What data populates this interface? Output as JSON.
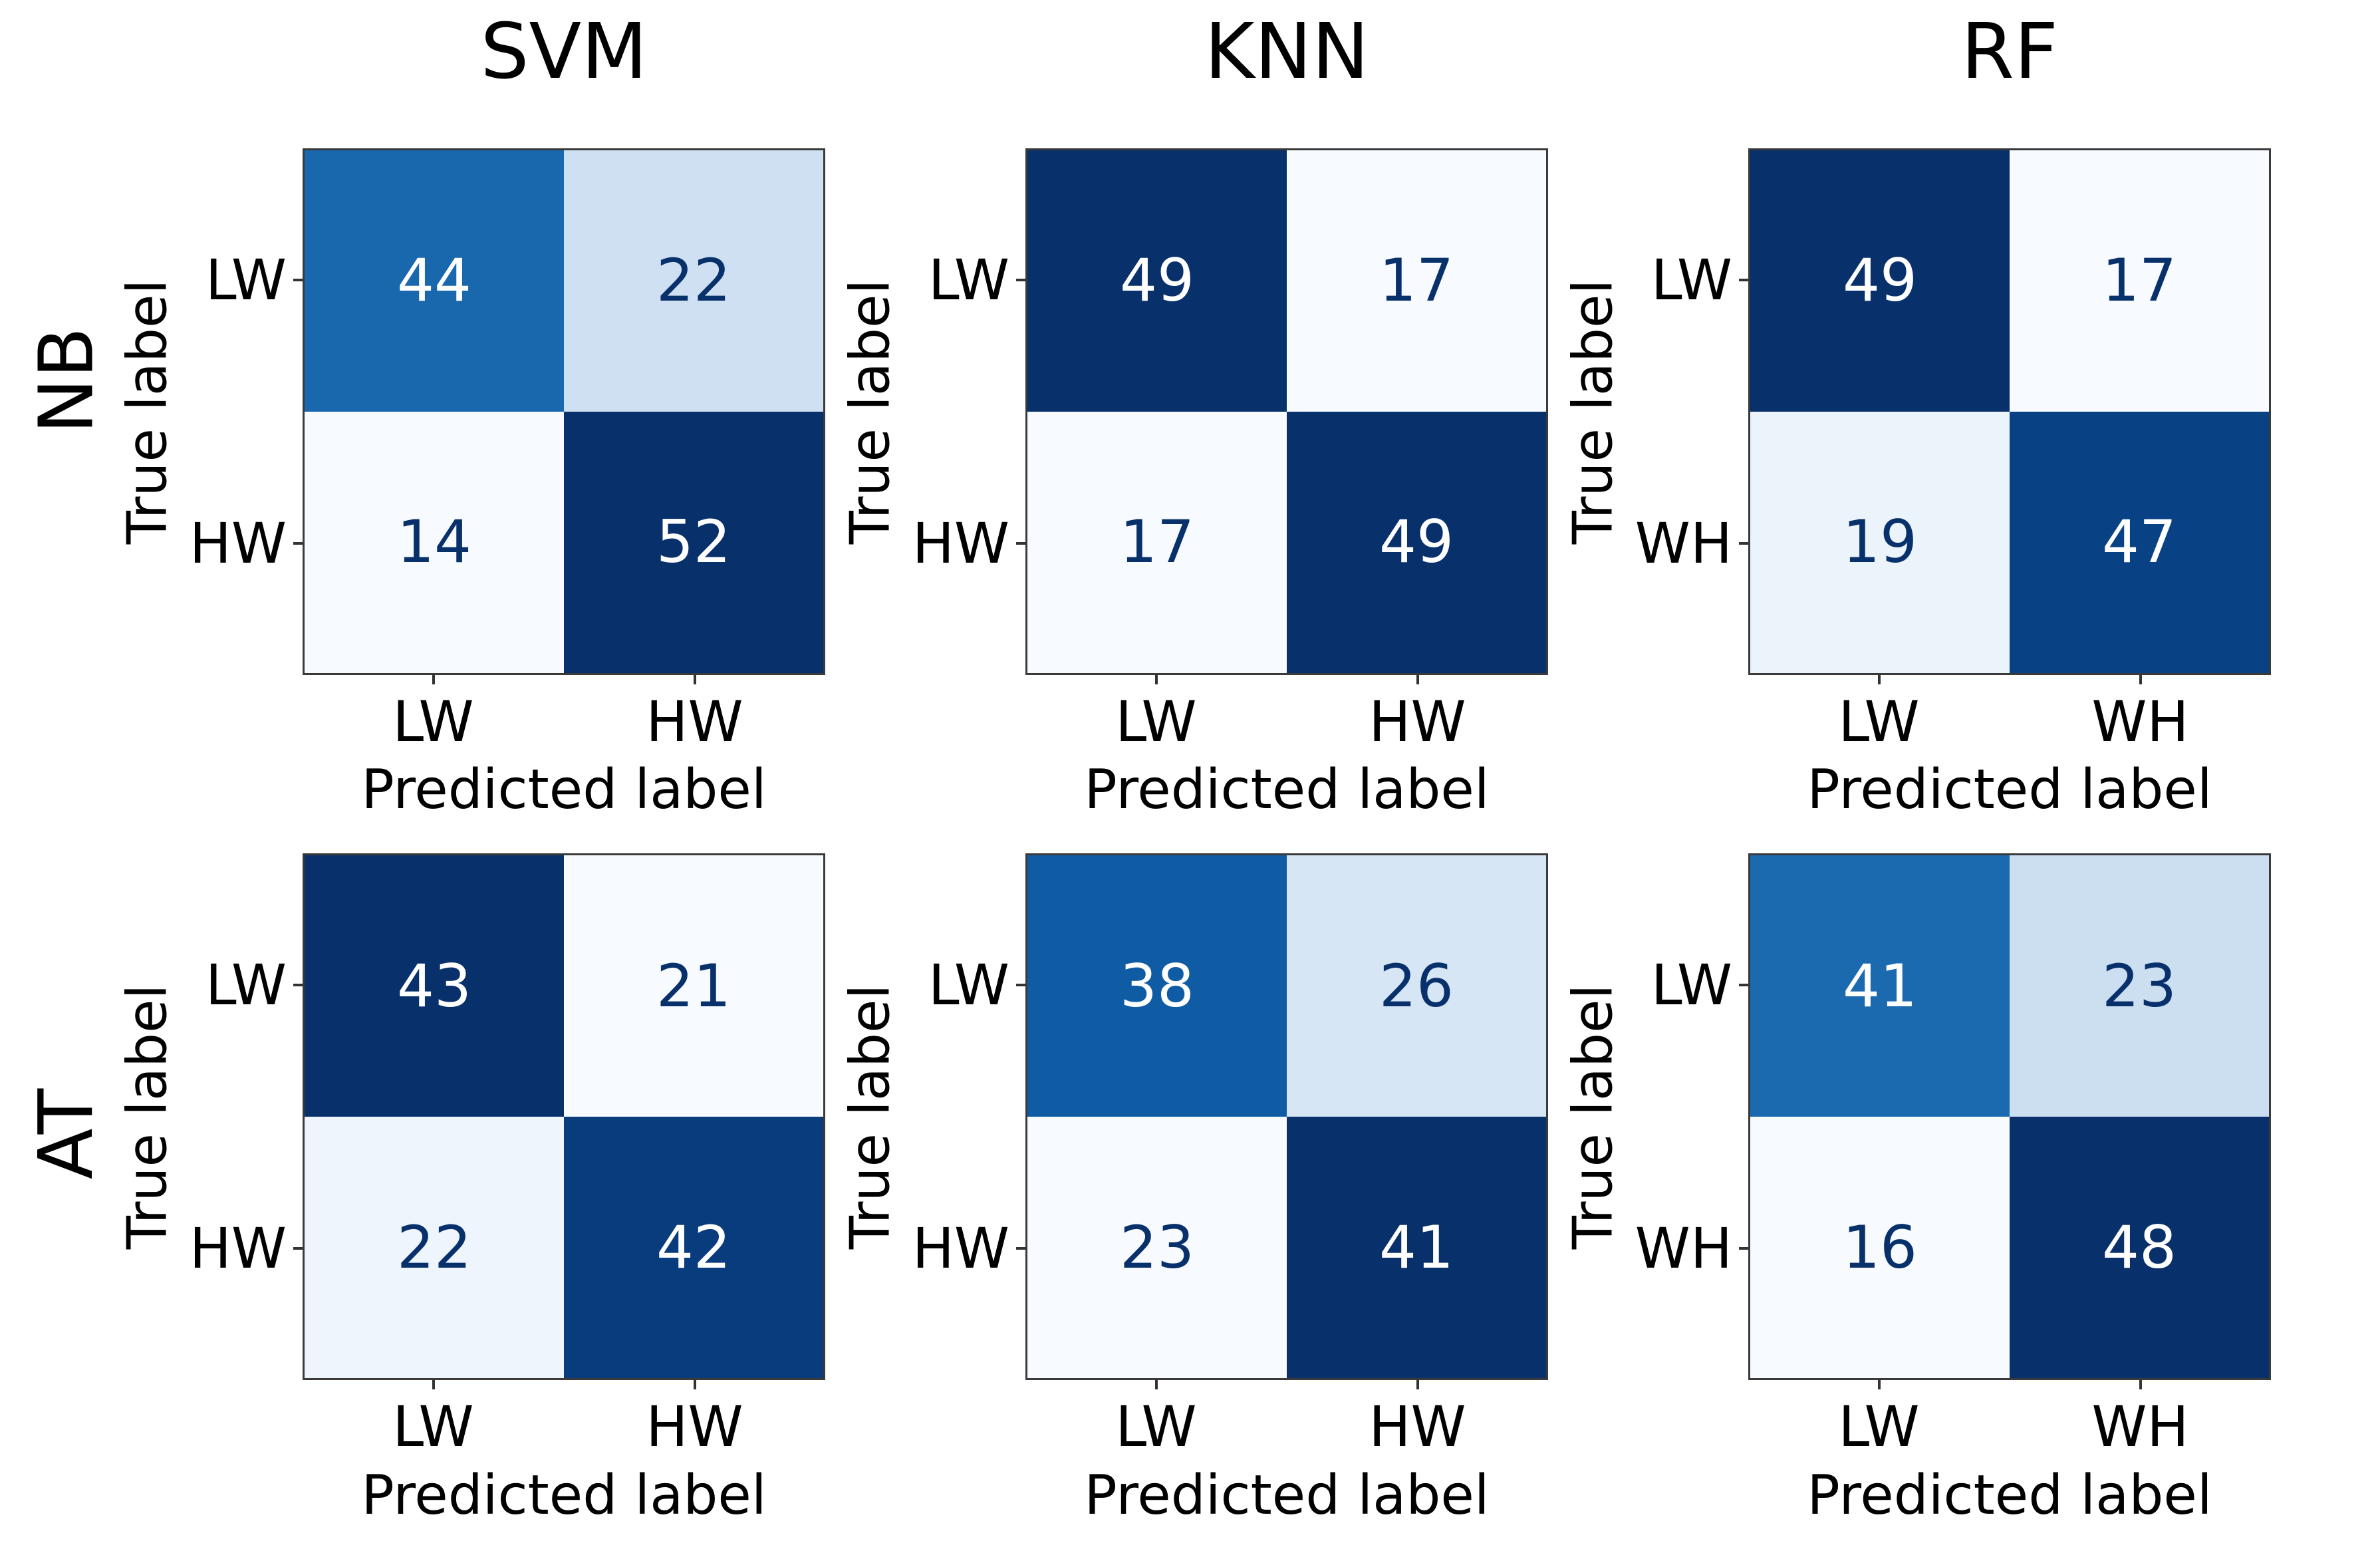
{
  "figure": {
    "row_titles": [
      "NB",
      "AT"
    ],
    "col_titles": [
      "SVM",
      "KNN",
      "RF"
    ],
    "xlabel": "Predicted label",
    "ylabel": "True label"
  },
  "colors": {
    "background": "#ffffff",
    "label_text": "#000000",
    "spine": "#3a3a3a",
    "tick_mark": "#333333",
    "cell_text_dark": "#08306b",
    "cell_text_light": "#ffffff",
    "cmap_name": "Blues",
    "cmap_anchors": [
      "#f7fbff",
      "#deebf7",
      "#c6dbef",
      "#9ecae1",
      "#6baed6",
      "#4292c6",
      "#2171b5",
      "#08519c",
      "#08306b"
    ]
  },
  "chart_data": [
    {
      "type": "heatmap",
      "title": "SVM",
      "row_group": "NB",
      "xlabel": "Predicted label",
      "ylabel": "True label",
      "x_tick_labels": [
        "LW",
        "HW"
      ],
      "y_tick_labels": [
        "LW",
        "HW"
      ],
      "values": [
        [
          44,
          22
        ],
        [
          14,
          52
        ]
      ]
    },
    {
      "type": "heatmap",
      "title": "KNN",
      "row_group": "NB",
      "xlabel": "Predicted label",
      "ylabel": "True label",
      "x_tick_labels": [
        "LW",
        "HW"
      ],
      "y_tick_labels": [
        "LW",
        "HW"
      ],
      "values": [
        [
          49,
          17
        ],
        [
          17,
          49
        ]
      ]
    },
    {
      "type": "heatmap",
      "title": "RF",
      "row_group": "NB",
      "xlabel": "Predicted label",
      "ylabel": "True label",
      "x_tick_labels": [
        "LW",
        "WH"
      ],
      "y_tick_labels": [
        "LW",
        "WH"
      ],
      "values": [
        [
          49,
          17
        ],
        [
          19,
          47
        ]
      ]
    },
    {
      "type": "heatmap",
      "title": "",
      "row_group": "AT",
      "xlabel": "Predicted label",
      "ylabel": "True label",
      "x_tick_labels": [
        "LW",
        "HW"
      ],
      "y_tick_labels": [
        "LW",
        "HW"
      ],
      "values": [
        [
          43,
          21
        ],
        [
          22,
          42
        ]
      ]
    },
    {
      "type": "heatmap",
      "title": "",
      "row_group": "AT",
      "xlabel": "Predicted label",
      "ylabel": "True label",
      "x_tick_labels": [
        "LW",
        "HW"
      ],
      "y_tick_labels": [
        "LW",
        "HW"
      ],
      "values": [
        [
          38,
          26
        ],
        [
          23,
          41
        ]
      ]
    },
    {
      "type": "heatmap",
      "title": "",
      "row_group": "AT",
      "xlabel": "Predicted label",
      "ylabel": "True label",
      "x_tick_labels": [
        "LW",
        "WH"
      ],
      "y_tick_labels": [
        "LW",
        "WH"
      ],
      "values": [
        [
          41,
          23
        ],
        [
          16,
          48
        ]
      ]
    }
  ]
}
